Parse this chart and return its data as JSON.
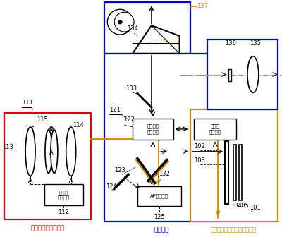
{
  "label_fouserzu": "フォーサーズレンズ",
  "label_adapter": "アダプタ",
  "label_micro": "マイクロフォーサーズボディ",
  "label_lens_ctrl": "レンズ\n制御回路",
  "label_adapter_ctrl": "アダプタ\n制御回路",
  "label_camera_ctrl": "カメラ\n制御回路",
  "label_af_unit": "AFユニット"
}
